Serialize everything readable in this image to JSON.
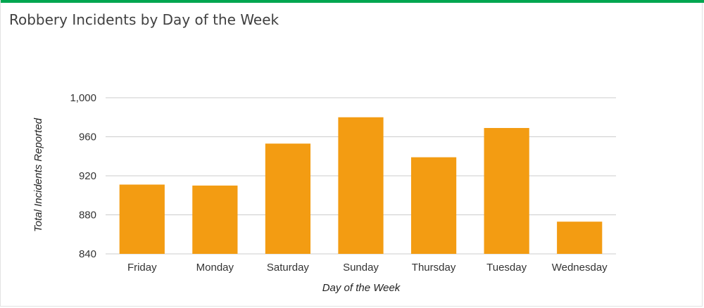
{
  "colors": {
    "accent": "#00A650",
    "bar": "#F39C12",
    "grid": "#CCCCCC"
  },
  "chart_data": {
    "type": "bar",
    "title": "Robbery Incidents by Day of the Week",
    "xlabel": "Day of the Week",
    "ylabel": "Total Incidents Reported",
    "categories": [
      "Friday",
      "Monday",
      "Saturday",
      "Sunday",
      "Thursday",
      "Tuesday",
      "Wednesday"
    ],
    "values": [
      911,
      910,
      953,
      980,
      939,
      969,
      873
    ],
    "ylim": [
      840,
      1000
    ],
    "yticks": [
      840,
      880,
      920,
      960,
      1000
    ],
    "ytick_labels": [
      "840",
      "880",
      "920",
      "960",
      "1,000"
    ],
    "grid": true,
    "legend": "none"
  }
}
